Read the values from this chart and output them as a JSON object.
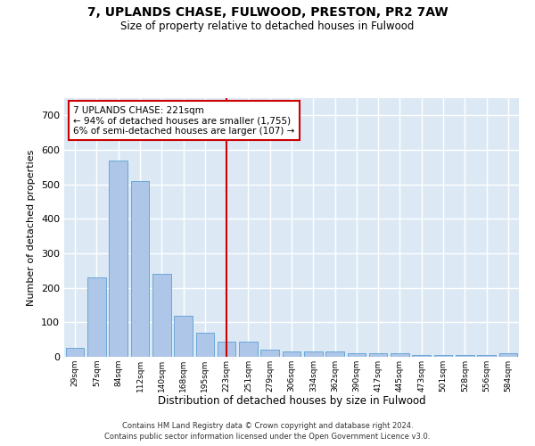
{
  "title1": "7, UPLANDS CHASE, FULWOOD, PRESTON, PR2 7AW",
  "title2": "Size of property relative to detached houses in Fulwood",
  "xlabel": "Distribution of detached houses by size in Fulwood",
  "ylabel": "Number of detached properties",
  "footer1": "Contains HM Land Registry data © Crown copyright and database right 2024.",
  "footer2": "Contains public sector information licensed under the Open Government Licence v3.0.",
  "bar_color": "#aec6e8",
  "bar_edge_color": "#5a9fd4",
  "bg_color": "#dce9f5",
  "grid_color": "#ffffff",
  "vline_color": "#cc0000",
  "annotation_text": "7 UPLANDS CHASE: 221sqm\n← 94% of detached houses are smaller (1,755)\n6% of semi-detached houses are larger (107) →",
  "annotation_box_color": "#cc0000",
  "categories": [
    "29sqm",
    "57sqm",
    "84sqm",
    "112sqm",
    "140sqm",
    "168sqm",
    "195sqm",
    "223sqm",
    "251sqm",
    "279sqm",
    "306sqm",
    "334sqm",
    "362sqm",
    "390sqm",
    "417sqm",
    "445sqm",
    "473sqm",
    "501sqm",
    "528sqm",
    "556sqm",
    "584sqm"
  ],
  "values": [
    25,
    230,
    570,
    510,
    240,
    120,
    70,
    45,
    45,
    20,
    15,
    15,
    15,
    10,
    10,
    10,
    5,
    5,
    5,
    5,
    10
  ],
  "ylim": [
    0,
    750
  ],
  "yticks": [
    0,
    100,
    200,
    300,
    400,
    500,
    600,
    700
  ],
  "bar_width": 0.85
}
